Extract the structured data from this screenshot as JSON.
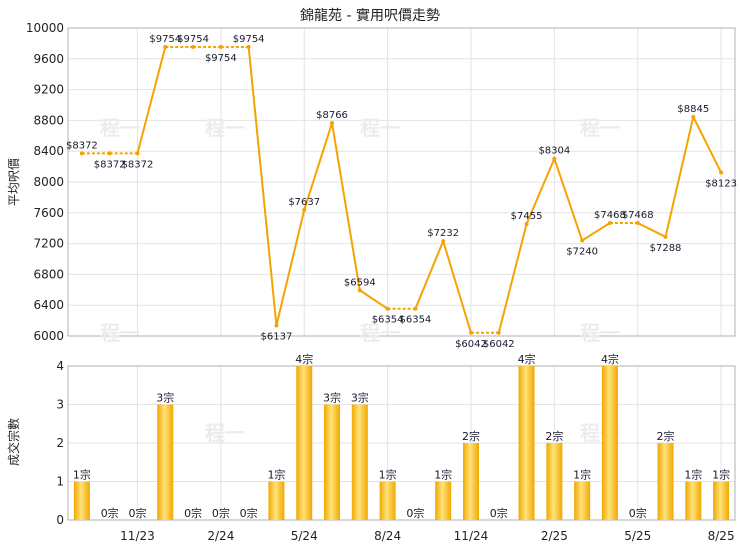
{
  "chart_data": [
    {
      "type": "line",
      "title": "錦龍苑 - 實用呎價走勢",
      "ylabel": "平均呎價",
      "ylim": [
        6000,
        10000
      ],
      "yticks": [
        6000,
        6400,
        6800,
        7200,
        7600,
        8000,
        8400,
        8800,
        9200,
        9600,
        10000
      ],
      "x_tick_labels": [
        "11/23",
        "2/24",
        "5/24",
        "8/24",
        "11/24",
        "2/25",
        "5/25",
        "8/25"
      ],
      "grid": true,
      "series": [
        {
          "values": [
            8372,
            8372,
            8372,
            9754,
            9754,
            9754,
            9754,
            6137,
            7637,
            8766,
            6594,
            6354,
            6354,
            7232,
            6042,
            6042,
            7455,
            8304,
            7240,
            7468,
            7468,
            7288,
            8845,
            8123
          ],
          "labels": [
            "$8372",
            "$8372",
            "$8372",
            "$9754",
            "$9754",
            "$9754",
            "$9754",
            "$6137",
            "$7637",
            "$8766",
            "$6594",
            "$6354",
            "$6354",
            "$7232",
            "$6042",
            "$6042",
            "$7455",
            "$8304",
            "$7240",
            "$7468",
            "$7468",
            "$7288",
            "$8845",
            "$8123"
          ]
        }
      ]
    },
    {
      "type": "bar",
      "ylabel": "成交宗數",
      "ylim": [
        0,
        4
      ],
      "yticks": [
        0,
        1,
        2,
        3,
        4
      ],
      "x_tick_labels": [
        "11/23",
        "2/24",
        "5/24",
        "8/24",
        "11/24",
        "2/25",
        "5/25",
        "8/25"
      ],
      "grid": true,
      "values": [
        1,
        0,
        0,
        3,
        0,
        0,
        0,
        1,
        4,
        3,
        3,
        1,
        0,
        1,
        2,
        0,
        4,
        2,
        1,
        4,
        0,
        2,
        1,
        1
      ],
      "labels": [
        "1宗",
        "0宗",
        "0宗",
        "3宗",
        "0宗",
        "0宗",
        "0宗",
        "1宗",
        "4宗",
        "3宗",
        "3宗",
        "1宗",
        "0宗",
        "1宗",
        "2宗",
        "0宗",
        "4宗",
        "2宗",
        "1宗",
        "4宗",
        "0宗",
        "2宗",
        "1宗",
        "1宗"
      ]
    }
  ]
}
